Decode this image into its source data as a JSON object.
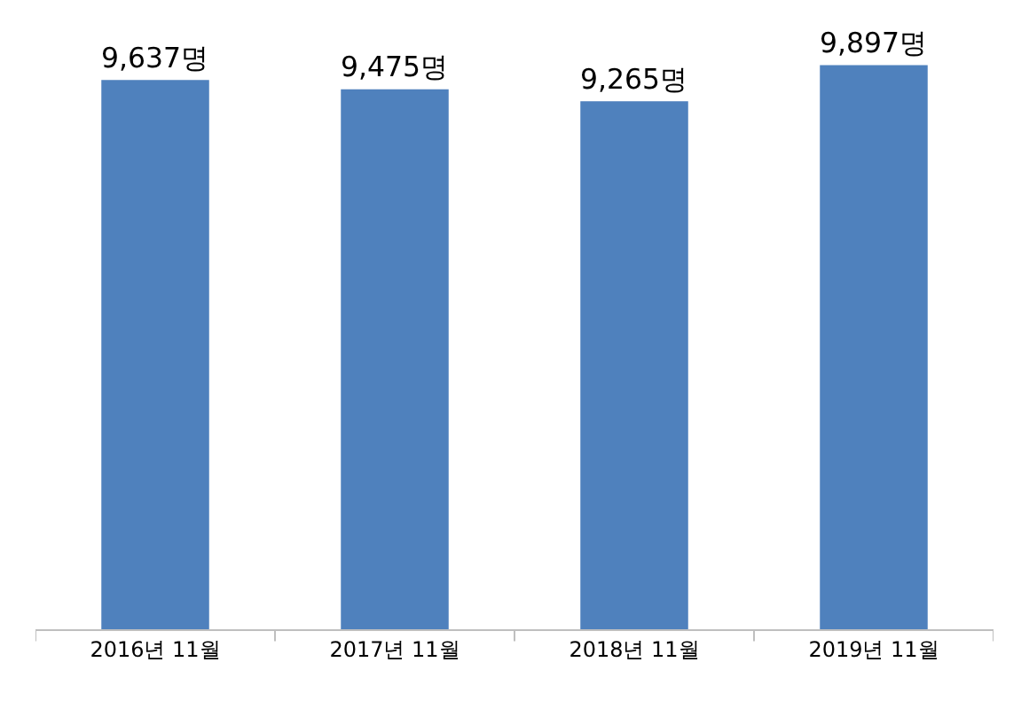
{
  "chart_data": {
    "type": "bar",
    "categories": [
      "2016년 11월",
      "2017년 11월",
      "2018년 11월",
      "2019년 11월"
    ],
    "values": [
      9637,
      9475,
      9265,
      9897
    ],
    "value_labels": [
      "9,637명",
      "9,475명",
      "9,265명",
      "9,897명"
    ],
    "color": "#4f81bd",
    "tick_labels": "x"
  }
}
